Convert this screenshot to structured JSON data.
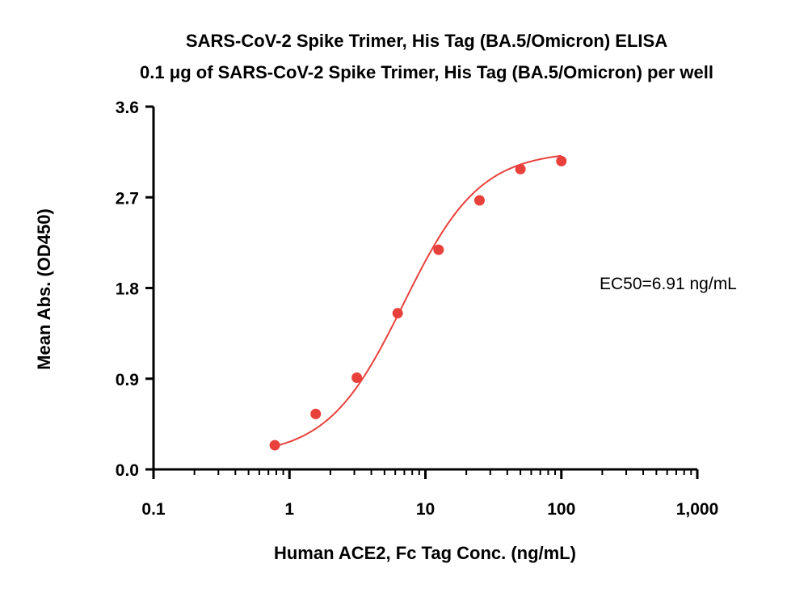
{
  "chart_data": {
    "type": "scatter",
    "title": "SARS-CoV-2 Spike Trimer, His Tag (BA.5/Omicron) ELISA",
    "subtitle": "0.1 μg of SARS-CoV-2 Spike Trimer, His Tag (BA.5/Omicron) per well",
    "xlabel": "Human ACE2, Fc Tag Conc. (ng/mL)",
    "ylabel": "Mean Abs. (OD450)",
    "x_scale": "log",
    "xlim": [
      0.1,
      1000
    ],
    "ylim": [
      0.0,
      3.6
    ],
    "x_ticks": [
      0.1,
      1,
      10,
      100,
      1000
    ],
    "x_tick_labels": [
      "0.1",
      "1",
      "10",
      "100",
      "1,000"
    ],
    "y_ticks": [
      0.0,
      0.9,
      1.8,
      2.7,
      3.6
    ],
    "y_tick_labels": [
      "0.0",
      "0.9",
      "1.8",
      "2.7",
      "3.6"
    ],
    "grid": false,
    "series": [
      {
        "x": [
          0.78,
          1.56,
          3.13,
          6.25,
          12.5,
          25,
          50,
          100
        ],
        "y": [
          0.24,
          0.55,
          0.91,
          1.55,
          2.18,
          2.67,
          2.98,
          3.06
        ],
        "color": "#e8413c",
        "fit": "4PL"
      }
    ],
    "annotations": [
      "EC50=6.91 ng/mL"
    ]
  }
}
